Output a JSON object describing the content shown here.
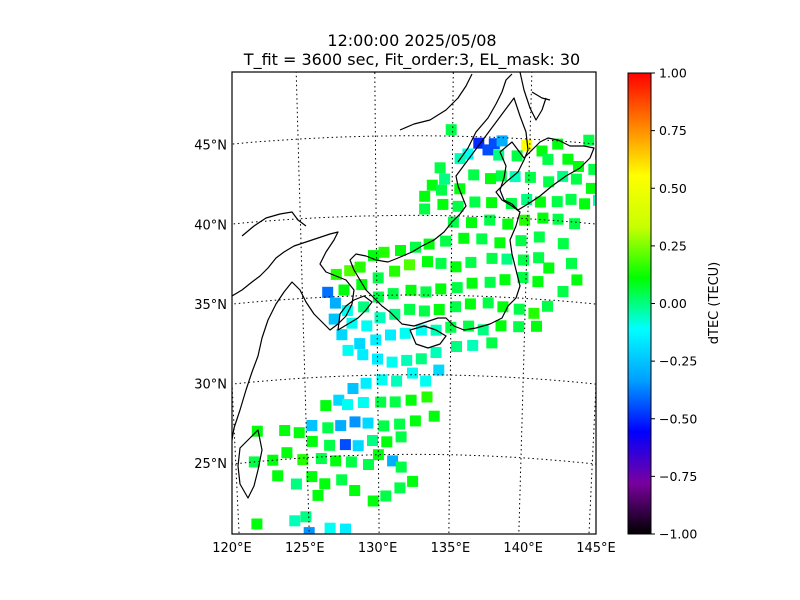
{
  "chart_data": {
    "type": "heatmap",
    "title": "12:00:00 2025/05/08",
    "subtitle": "T_fit = 3600 sec, Fit_order:3, EL_mask: 30",
    "xlabel": "",
    "ylabel": "",
    "lon_ticks": [
      "120°E",
      "125°E",
      "130°E",
      "135°E",
      "140°E",
      "145°E"
    ],
    "lat_ticks": [
      "45°N",
      "40°N",
      "35°N",
      "30°N",
      "25°N"
    ],
    "lon_range": [
      120,
      145
    ],
    "lat_range": [
      20,
      49
    ],
    "grid": true,
    "colorbar": {
      "label": "dTEC (TECU)",
      "range": [
        -1.0,
        1.0
      ],
      "ticks": [
        "1.00",
        "0.75",
        "0.50",
        "0.25",
        "0.00",
        "−0.25",
        "−0.50",
        "−0.75",
        "−1.00"
      ],
      "colormap": [
        "#000000",
        "#7a00a0",
        "#0000ff",
        "#00a0ff",
        "#00ffff",
        "#00ff00",
        "#c8ff00",
        "#ffff00",
        "#ff8000",
        "#ff0000"
      ]
    },
    "points": [
      [
        134.9,
        45.4,
        0.05
      ],
      [
        136.7,
        44.6,
        -0.5
      ],
      [
        137.3,
        44.2,
        -0.45
      ],
      [
        137.7,
        44.6,
        -0.45
      ],
      [
        138.2,
        44.8,
        -0.3
      ],
      [
        139.8,
        44.6,
        0.55
      ],
      [
        141.8,
        44.8,
        0.1
      ],
      [
        143.8,
        45.2,
        0.05
      ],
      [
        144.6,
        44.4,
        0.05
      ],
      [
        140.8,
        44.3,
        0.1
      ],
      [
        141.2,
        43.8,
        0.05
      ],
      [
        142.5,
        43.9,
        0.1
      ],
      [
        143.2,
        43.5,
        0.1
      ],
      [
        144.2,
        43.4,
        0.05
      ],
      [
        139.2,
        43.9,
        0.05
      ],
      [
        138.0,
        43.9,
        0.0
      ],
      [
        136.0,
        43.9,
        -0.1
      ],
      [
        135.5,
        43.6,
        -0.05
      ],
      [
        134.2,
        43.0,
        0.05
      ],
      [
        134.5,
        42.3,
        0.0
      ],
      [
        133.7,
        41.9,
        0.1
      ],
      [
        133.2,
        41.2,
        0.1
      ],
      [
        133.2,
        40.4,
        0.05
      ],
      [
        134.3,
        41.6,
        0.05
      ],
      [
        135.5,
        41.7,
        0.1
      ],
      [
        136.4,
        42.6,
        0.05
      ],
      [
        137.5,
        42.4,
        0.1
      ],
      [
        138.2,
        42.6,
        0.05
      ],
      [
        139.1,
        42.6,
        -0.05
      ],
      [
        140.1,
        42.6,
        0.05
      ],
      [
        141.3,
        42.4,
        0.05
      ],
      [
        142.2,
        42.8,
        0.0
      ],
      [
        143.1,
        42.7,
        0.05
      ],
      [
        144.1,
        42.2,
        0.1
      ],
      [
        144.6,
        41.5,
        -0.05
      ],
      [
        143.7,
        41.2,
        0.1
      ],
      [
        142.8,
        41.4,
        0.05
      ],
      [
        141.9,
        41.2,
        0.05
      ],
      [
        140.8,
        41.1,
        0.1
      ],
      [
        139.9,
        41.2,
        0.0
      ],
      [
        138.9,
        40.9,
        0.05
      ],
      [
        137.6,
        40.9,
        0.1
      ],
      [
        136.5,
        40.9,
        0.05
      ],
      [
        135.4,
        40.6,
        0.05
      ],
      [
        134.4,
        40.7,
        0.1
      ],
      [
        135.1,
        39.6,
        0.05
      ],
      [
        136.3,
        39.6,
        0.1
      ],
      [
        137.5,
        39.8,
        0.05
      ],
      [
        138.7,
        39.6,
        0.1
      ],
      [
        139.8,
        39.9,
        0.15
      ],
      [
        141.0,
        40.1,
        0.1
      ],
      [
        142.0,
        40.1,
        0.05
      ],
      [
        143.1,
        39.9,
        0.05
      ],
      [
        140.8,
        38.9,
        0.05
      ],
      [
        139.6,
        38.6,
        0.05
      ],
      [
        138.2,
        38.4,
        0.1
      ],
      [
        137.0,
        38.6,
        0.05
      ],
      [
        135.8,
        38.6,
        0.1
      ],
      [
        134.6,
        38.4,
        0.05
      ],
      [
        133.5,
        38.2,
        0.1
      ],
      [
        132.6,
        38.0,
        0.05
      ],
      [
        131.6,
        37.8,
        0.1
      ],
      [
        130.5,
        37.7,
        0.15
      ],
      [
        129.8,
        37.5,
        0.1
      ],
      [
        128.9,
        36.8,
        0.15
      ],
      [
        128.2,
        36.6,
        0.2
      ],
      [
        127.3,
        36.4,
        0.15
      ],
      [
        126.7,
        35.3,
        -0.4
      ],
      [
        127.2,
        34.6,
        -0.3
      ],
      [
        127.8,
        35.4,
        0.1
      ],
      [
        129.0,
        35.7,
        0.1
      ],
      [
        130.1,
        36.1,
        0.05
      ],
      [
        131.2,
        36.5,
        0.15
      ],
      [
        132.2,
        36.9,
        0.2
      ],
      [
        133.4,
        37.1,
        0.1
      ],
      [
        134.3,
        37.0,
        0.05
      ],
      [
        135.3,
        36.8,
        0.1
      ],
      [
        136.3,
        37.1,
        0.05
      ],
      [
        137.7,
        37.4,
        0.05
      ],
      [
        138.7,
        37.4,
        0.0
      ],
      [
        139.8,
        37.4,
        0.05
      ],
      [
        140.8,
        37.6,
        0.05
      ],
      [
        141.5,
        37.0,
        0.1
      ],
      [
        140.8,
        36.1,
        0.1
      ],
      [
        139.8,
        36.3,
        0.05
      ],
      [
        138.6,
        36.1,
        0.1
      ],
      [
        137.6,
        35.9,
        0.05
      ],
      [
        136.4,
        35.8,
        0.1
      ],
      [
        135.4,
        35.5,
        0.05
      ],
      [
        134.3,
        35.4,
        0.1
      ],
      [
        133.3,
        35.2,
        0.05
      ],
      [
        132.3,
        35.3,
        0.1
      ],
      [
        131.1,
        35.1,
        0.05
      ],
      [
        130.1,
        34.9,
        0.05
      ],
      [
        129.1,
        34.3,
        0.0
      ],
      [
        128.0,
        34.1,
        -0.1
      ],
      [
        127.1,
        33.6,
        -0.25
      ],
      [
        127.6,
        32.6,
        -0.2
      ],
      [
        128.3,
        33.3,
        -0.1
      ],
      [
        129.3,
        33.1,
        -0.1
      ],
      [
        130.2,
        33.6,
        -0.05
      ],
      [
        131.2,
        33.8,
        0.0
      ],
      [
        132.2,
        34.1,
        0.05
      ],
      [
        133.2,
        34.0,
        0.05
      ],
      [
        134.2,
        34.1,
        0.1
      ],
      [
        135.3,
        34.3,
        0.05
      ],
      [
        136.3,
        34.5,
        0.1
      ],
      [
        137.5,
        34.6,
        0.05
      ],
      [
        138.5,
        34.4,
        0.1
      ],
      [
        139.6,
        34.3,
        0.05
      ],
      [
        140.6,
        34.1,
        0.15
      ],
      [
        141.5,
        34.6,
        0.05
      ],
      [
        142.5,
        35.6,
        0.05
      ],
      [
        143.4,
        36.4,
        0.1
      ],
      [
        143.0,
        37.4,
        0.05
      ],
      [
        142.4,
        38.6,
        0.05
      ],
      [
        140.8,
        33.3,
        0.1
      ],
      [
        139.6,
        33.2,
        0.05
      ],
      [
        138.4,
        33.2,
        0.1
      ],
      [
        137.2,
        32.9,
        0.0
      ],
      [
        136.2,
        33.1,
        0.05
      ],
      [
        135.0,
        33.0,
        0.05
      ],
      [
        134.0,
        32.8,
        -0.05
      ],
      [
        133.0,
        32.8,
        -0.1
      ],
      [
        131.9,
        32.6,
        -0.1
      ],
      [
        130.9,
        32.5,
        -0.15
      ],
      [
        129.9,
        32.2,
        -0.15
      ],
      [
        128.8,
        32.0,
        -0.2
      ],
      [
        128.0,
        31.6,
        -0.1
      ],
      [
        129.0,
        31.3,
        -0.15
      ],
      [
        130.0,
        31.0,
        -0.15
      ],
      [
        131.0,
        30.8,
        -0.1
      ],
      [
        132.0,
        30.9,
        -0.05
      ],
      [
        133.0,
        31.0,
        0.0
      ],
      [
        134.0,
        31.4,
        -0.05
      ],
      [
        135.4,
        31.8,
        0.0
      ],
      [
        136.5,
        31.9,
        -0.05
      ],
      [
        137.8,
        32.1,
        0.05
      ],
      [
        134.2,
        30.3,
        -0.2
      ],
      [
        133.3,
        29.6,
        -0.1
      ],
      [
        132.4,
        30.1,
        -0.1
      ],
      [
        131.3,
        29.6,
        -0.05
      ],
      [
        130.3,
        29.7,
        -0.1
      ],
      [
        129.2,
        29.5,
        -0.15
      ],
      [
        128.3,
        29.2,
        -0.25
      ],
      [
        127.3,
        28.5,
        -0.2
      ],
      [
        126.4,
        28.2,
        0.1
      ],
      [
        127.9,
        28.2,
        -0.1
      ],
      [
        129.0,
        28.3,
        -0.1
      ],
      [
        130.2,
        28.3,
        0.05
      ],
      [
        131.2,
        28.3,
        0.05
      ],
      [
        132.3,
        28.4,
        0.1
      ],
      [
        133.4,
        28.6,
        0.15
      ],
      [
        133.9,
        27.4,
        0.1
      ],
      [
        132.6,
        27.1,
        0.1
      ],
      [
        131.5,
        26.9,
        0.05
      ],
      [
        130.4,
        26.8,
        0.05
      ],
      [
        129.3,
        27.0,
        -0.2
      ],
      [
        128.4,
        27.1,
        -0.35
      ],
      [
        127.4,
        26.9,
        -0.3
      ],
      [
        126.5,
        26.8,
        0.05
      ],
      [
        125.4,
        27.0,
        -0.25
      ],
      [
        124.5,
        26.6,
        0.1
      ],
      [
        123.5,
        26.8,
        0.1
      ],
      [
        121.6,
        26.9,
        0.1
      ],
      [
        125.4,
        26.0,
        0.1
      ],
      [
        126.6,
        25.7,
        0.05
      ],
      [
        127.7,
        25.7,
        -0.45
      ],
      [
        128.6,
        25.6,
        -0.2
      ],
      [
        129.6,
        25.9,
        0.0
      ],
      [
        130.6,
        25.8,
        0.1
      ],
      [
        131.6,
        26.1,
        0.05
      ],
      [
        130.0,
        25.0,
        0.1
      ],
      [
        129.3,
        24.4,
        0.05
      ],
      [
        128.1,
        24.6,
        0.05
      ],
      [
        127.0,
        24.7,
        0.1
      ],
      [
        126.0,
        24.9,
        0.05
      ],
      [
        131.0,
        24.6,
        -0.3
      ],
      [
        131.6,
        24.2,
        0.05
      ],
      [
        121.3,
        25.0,
        0.05
      ],
      [
        122.6,
        25.0,
        0.1
      ],
      [
        123.6,
        25.4,
        0.1
      ],
      [
        124.7,
        24.9,
        0.15
      ],
      [
        122.9,
        24.0,
        0.1
      ],
      [
        124.2,
        23.4,
        0.0
      ],
      [
        125.3,
        23.8,
        0.1
      ],
      [
        126.2,
        23.3,
        0.1
      ],
      [
        127.4,
        23.5,
        0.05
      ],
      [
        128.3,
        22.8,
        0.1
      ],
      [
        125.7,
        22.6,
        0.1
      ],
      [
        129.6,
        22.1,
        0.1
      ],
      [
        130.5,
        22.4,
        0.05
      ],
      [
        131.5,
        22.9,
        0.05
      ],
      [
        132.4,
        23.3,
        0.1
      ],
      [
        124.8,
        21.3,
        0.0
      ],
      [
        124.0,
        21.1,
        -0.05
      ],
      [
        121.3,
        21.1,
        0.1
      ],
      [
        127.6,
        20.4,
        -0.15
      ],
      [
        126.5,
        20.5,
        -0.1
      ],
      [
        125.0,
        20.3,
        -0.35
      ]
    ]
  }
}
